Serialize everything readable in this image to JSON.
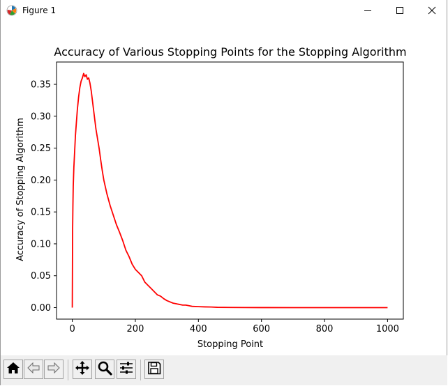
{
  "window": {
    "title": "Figure 1",
    "icons": {
      "app": "matplotlib-icon",
      "minimize": "minimize-icon",
      "maximize": "maximize-icon",
      "close": "close-icon"
    }
  },
  "toolbar": {
    "buttons": [
      {
        "name": "home-button",
        "icon": "home-icon"
      },
      {
        "name": "back-button",
        "icon": "arrow-left-icon"
      },
      {
        "name": "forward-button",
        "icon": "arrow-right-icon"
      },
      {
        "name": "pan-button",
        "icon": "move-icon"
      },
      {
        "name": "zoom-button",
        "icon": "magnifier-icon"
      },
      {
        "name": "configure-subplots-button",
        "icon": "sliders-icon"
      },
      {
        "name": "save-button",
        "icon": "floppy-disk-icon"
      }
    ]
  },
  "colors": {
    "line": "#ff0000",
    "toolbar_bg": "#f0f0f0"
  },
  "chart_data": {
    "type": "line",
    "title": "Accuracy of Various Stopping Points for the Stopping Algorithm",
    "xlabel": "Stopping Point",
    "ylabel": "Accuracy of Stopping Algorithm",
    "xlim": [
      -50,
      1050
    ],
    "ylim": [
      -0.018,
      0.385
    ],
    "xticks": [
      0,
      200,
      400,
      600,
      800,
      1000
    ],
    "xtick_labels": [
      "0",
      "200",
      "400",
      "600",
      "800",
      "1000"
    ],
    "yticks": [
      0.0,
      0.05,
      0.1,
      0.15,
      0.2,
      0.25,
      0.3,
      0.35
    ],
    "ytick_labels": [
      "0.00",
      "0.05",
      "0.10",
      "0.15",
      "0.20",
      "0.25",
      "0.30",
      "0.35"
    ],
    "grid": false,
    "series": [
      {
        "color": "#ff0000",
        "x": [
          0,
          1,
          2,
          3,
          5,
          8,
          10,
          13,
          16,
          20,
          24,
          28,
          32,
          36,
          40,
          44,
          48,
          52,
          56,
          60,
          65,
          70,
          75,
          80,
          85,
          90,
          95,
          100,
          110,
          120,
          130,
          140,
          150,
          160,
          170,
          180,
          190,
          200,
          210,
          220,
          230,
          240,
          250,
          260,
          270,
          280,
          290,
          300,
          310,
          320,
          330,
          340,
          350,
          360,
          370,
          380,
          400,
          420,
          440,
          460,
          500,
          550,
          600,
          700,
          800,
          900,
          1000
        ],
        "y": [
          0.0,
          0.12,
          0.16,
          0.19,
          0.22,
          0.25,
          0.27,
          0.29,
          0.31,
          0.33,
          0.345,
          0.355,
          0.36,
          0.367,
          0.362,
          0.365,
          0.358,
          0.36,
          0.352,
          0.34,
          0.32,
          0.3,
          0.28,
          0.265,
          0.25,
          0.232,
          0.215,
          0.2,
          0.178,
          0.16,
          0.145,
          0.13,
          0.118,
          0.105,
          0.09,
          0.08,
          0.068,
          0.06,
          0.055,
          0.05,
          0.04,
          0.035,
          0.03,
          0.025,
          0.02,
          0.018,
          0.014,
          0.011,
          0.009,
          0.007,
          0.006,
          0.005,
          0.004,
          0.004,
          0.003,
          0.002,
          0.0015,
          0.0012,
          0.001,
          0.0005,
          0.0003,
          0.0002,
          0.0001,
          0.0,
          0.0,
          0.0,
          0.0
        ]
      }
    ]
  }
}
